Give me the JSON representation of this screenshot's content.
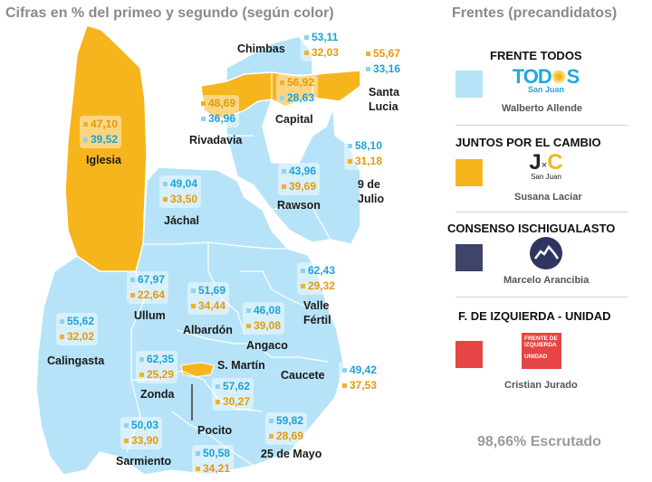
{
  "header": {
    "left_title": "Cifras en % del primeo y segundo (según color)",
    "right_title": "Frentes (precandidatos)"
  },
  "colors": {
    "blue": "#b6e3f7",
    "gold": "#f6b51c",
    "navy": "#3f4468",
    "red": "#e64545"
  },
  "departments": [
    {
      "name": "Chimbas",
      "v1": "53,11",
      "c1": "blue",
      "v2": "32,03",
      "c2": "gold"
    },
    {
      "name": "Santa Lucia",
      "v1": "55,67",
      "c1": "gold",
      "v2": "33,16",
      "c2": "blue"
    },
    {
      "name": "Capital",
      "v1": "56,92",
      "c1": "gold",
      "v2": "28,63",
      "c2": "blue"
    },
    {
      "name": "Rivadavia",
      "v1": "48,69",
      "c1": "gold",
      "v2": "36,96",
      "c2": "blue"
    },
    {
      "name": "Iglesia",
      "v1": "47,10",
      "c1": "gold",
      "v2": "39,52",
      "c2": "blue"
    },
    {
      "name": "9 de Julio",
      "v1": "58,10",
      "c1": "blue",
      "v2": "31,18",
      "c2": "gold"
    },
    {
      "name": "Rawson",
      "v1": "43,96",
      "c1": "blue",
      "v2": "39,69",
      "c2": "gold"
    },
    {
      "name": "Jáchal",
      "v1": "49,04",
      "c1": "blue",
      "v2": "33,50",
      "c2": "gold"
    },
    {
      "name": "Valle Fértil",
      "v1": "62,43",
      "c1": "blue",
      "v2": "29,32",
      "c2": "gold"
    },
    {
      "name": "Ullum",
      "v1": "67,97",
      "c1": "blue",
      "v2": "22,64",
      "c2": "gold"
    },
    {
      "name": "Albardón",
      "v1": "51,69",
      "c1": "blue",
      "v2": "34,44",
      "c2": "gold"
    },
    {
      "name": "Angaco",
      "v1": "46,08",
      "c1": "blue",
      "v2": "39,08",
      "c2": "gold"
    },
    {
      "name": "Calingasta",
      "v1": "55,62",
      "c1": "blue",
      "v2": "32,02",
      "c2": "gold"
    },
    {
      "name": "Zonda",
      "v1": "62,35",
      "c1": "blue",
      "v2": "25,29",
      "c2": "gold"
    },
    {
      "name": "S. Martín",
      "v1": "",
      "c1": "",
      "v2": "",
      "c2": ""
    },
    {
      "name": "Caucete",
      "v1": "49,42",
      "c1": "blue",
      "v2": "37,53",
      "c2": "gold"
    },
    {
      "name": "Pocito",
      "v1": "57,62",
      "c1": "blue",
      "v2": "30,27",
      "c2": "gold"
    },
    {
      "name": "Sarmiento",
      "v1": "50,03",
      "c1": "blue",
      "v2": "33,90",
      "c2": "gold"
    },
    {
      "name": "25 de Mayo",
      "v1": "59,82",
      "c1": "blue",
      "v2": "28,69",
      "c2": "gold"
    },
    {
      "name": "Pocito-south",
      "v1": "50,58",
      "c1": "blue",
      "v2": "34,21",
      "c2": "gold"
    }
  ],
  "legend": [
    {
      "front": "FRENTE TODOS",
      "candidate": "Walberto Allende",
      "color": "#b6e3f7",
      "logo_text": "TOD",
      "logo_text2": "S",
      "logo_sub": "San Juan"
    },
    {
      "front": "JUNTOS POR EL CAMBIO",
      "candidate": "Susana Laciar",
      "color": "#f6b51c",
      "logo_text": "J",
      "logo_text2": "C",
      "logo_sub": "San Juan"
    },
    {
      "front": "CONSENSO ISCHIGUALASTO",
      "candidate": "Marcelo Arancibia",
      "color": "#3f4468"
    },
    {
      "front": "F. DE IZQUIERDA - UNIDAD",
      "candidate": "Cristian Jurado",
      "color": "#e64545",
      "logo_lines": [
        "FRENTE DE",
        "IZQUIERDA"
      ],
      "logo_sub": "UNIDAD"
    }
  ],
  "status": "98,66% Escrutado"
}
